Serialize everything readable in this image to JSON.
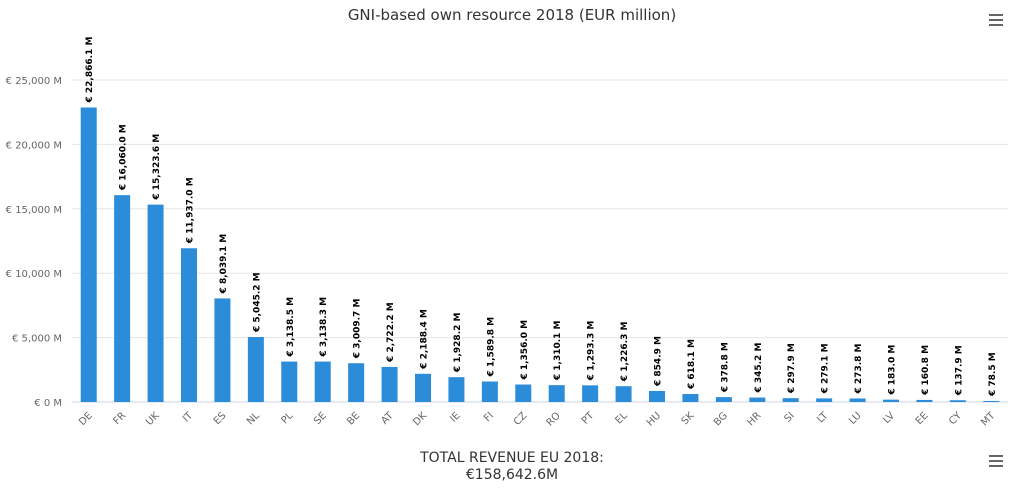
{
  "chart_data": {
    "type": "bar",
    "title": "GNI-based own resource 2018 (EUR million)",
    "categories": [
      "DE",
      "FR",
      "UK",
      "IT",
      "ES",
      "NL",
      "PL",
      "SE",
      "BE",
      "AT",
      "DK",
      "IE",
      "FI",
      "CZ",
      "RO",
      "PT",
      "EL",
      "HU",
      "SK",
      "BG",
      "HR",
      "SI",
      "LT",
      "LU",
      "LV",
      "EE",
      "CY",
      "MT"
    ],
    "values": [
      22866.1,
      16060.0,
      15323.6,
      11937.0,
      8039.1,
      5045.2,
      3138.5,
      3138.3,
      3009.7,
      2722.2,
      2188.4,
      1928.2,
      1589.8,
      1356.0,
      1310.1,
      1293.3,
      1226.3,
      854.9,
      618.1,
      378.8,
      345.2,
      297.9,
      279.1,
      273.8,
      183.0,
      160.8,
      137.9,
      78.5
    ],
    "data_labels": [
      "€ 22,866.1 M",
      "€ 16,060.0 M",
      "€ 15,323.6 M",
      "€ 11,937.0 M",
      "€ 8,039.1 M",
      "€ 5,045.2 M",
      "€ 3,138.5 M",
      "€ 3,138.3 M",
      "€ 3,009.7 M",
      "€ 2,722.2 M",
      "€ 2,188.4 M",
      "€ 1,928.2 M",
      "€ 1,589.8 M",
      "€ 1,356.0 M",
      "€ 1,310.1 M",
      "€ 1,293.3 M",
      "€ 1,226.3 M",
      "€ 854.9 M",
      "€ 618.1 M",
      "€ 378.8 M",
      "€ 345.2 M",
      "€ 297.9 M",
      "€ 279.1 M",
      "€ 273.8 M",
      "€ 183.0 M",
      "€ 160.8 M",
      "€ 137.9 M",
      "€ 78.5 M"
    ],
    "yticks": [
      0,
      5000,
      10000,
      15000,
      20000,
      25000
    ],
    "ytick_labels": [
      "€ 0 M",
      "€ 5,000 M",
      "€ 10,000 M",
      "€ 15,000 M",
      "€ 20,000 M",
      "€ 25,000 M"
    ],
    "ylim": [
      0,
      25000
    ],
    "xlabel": "",
    "ylabel": "",
    "grid": true,
    "bar_color": "#2b8cd9"
  },
  "footer": {
    "total_label": "TOTAL REVENUE EU 2018:",
    "total_value": "€158,642.6M"
  },
  "icons": {
    "menu": "hamburger-menu-icon"
  }
}
